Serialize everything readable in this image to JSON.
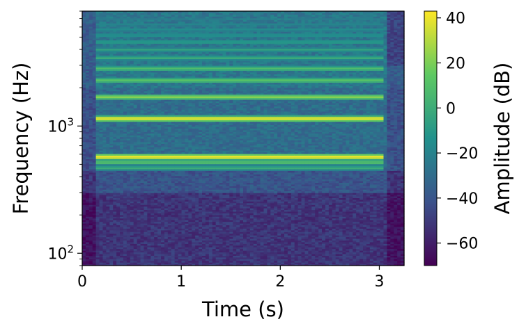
{
  "chart_data": {
    "type": "heatmap",
    "subtype": "spectrogram",
    "xlabel": "Time (s)",
    "ylabel": "Frequency (Hz)",
    "xlim": [
      0,
      3.25
    ],
    "ylim": [
      80,
      8000
    ],
    "yscale": "log",
    "xticks": [
      {
        "value": 0,
        "label": "0"
      },
      {
        "value": 1,
        "label": "1"
      },
      {
        "value": 2,
        "label": "2"
      },
      {
        "value": 3,
        "label": "3"
      }
    ],
    "yticks": [
      {
        "value": 100,
        "label": "10",
        "exp": "2"
      },
      {
        "value": 1000,
        "label": "10",
        "exp": "3"
      }
    ],
    "grid": false,
    "colormap": "viridis",
    "colorbar": {
      "label": "Amplitude (dB)",
      "range": [
        -70,
        43
      ],
      "ticks": [
        {
          "value": 40,
          "label": "40"
        },
        {
          "value": 20,
          "label": "20"
        },
        {
          "value": 0,
          "label": "0"
        },
        {
          "value": -20,
          "label": "−20"
        },
        {
          "value": -40,
          "label": "−40"
        },
        {
          "value": -60,
          "label": "−60"
        }
      ]
    },
    "note_onset_s": 0.13,
    "note_offset_s": 3.03,
    "harmonics": [
      {
        "freq_hz": 470,
        "level_db": 0
      },
      {
        "freq_hz": 520,
        "level_db": 10
      },
      {
        "freq_hz": 575,
        "level_db": 40
      },
      {
        "freq_hz": 1150,
        "level_db": 38
      },
      {
        "freq_hz": 1700,
        "level_db": 22
      },
      {
        "freq_hz": 2300,
        "level_db": 12
      },
      {
        "freq_hz": 2850,
        "level_db": 8
      },
      {
        "freq_hz": 3450,
        "level_db": 0
      },
      {
        "freq_hz": 4000,
        "level_db": -5
      },
      {
        "freq_hz": 4600,
        "level_db": -8
      },
      {
        "freq_hz": 5200,
        "level_db": -12
      },
      {
        "freq_hz": 5750,
        "level_db": -15
      },
      {
        "freq_hz": 6300,
        "level_db": -18
      },
      {
        "freq_hz": 6900,
        "level_db": -22
      }
    ]
  }
}
